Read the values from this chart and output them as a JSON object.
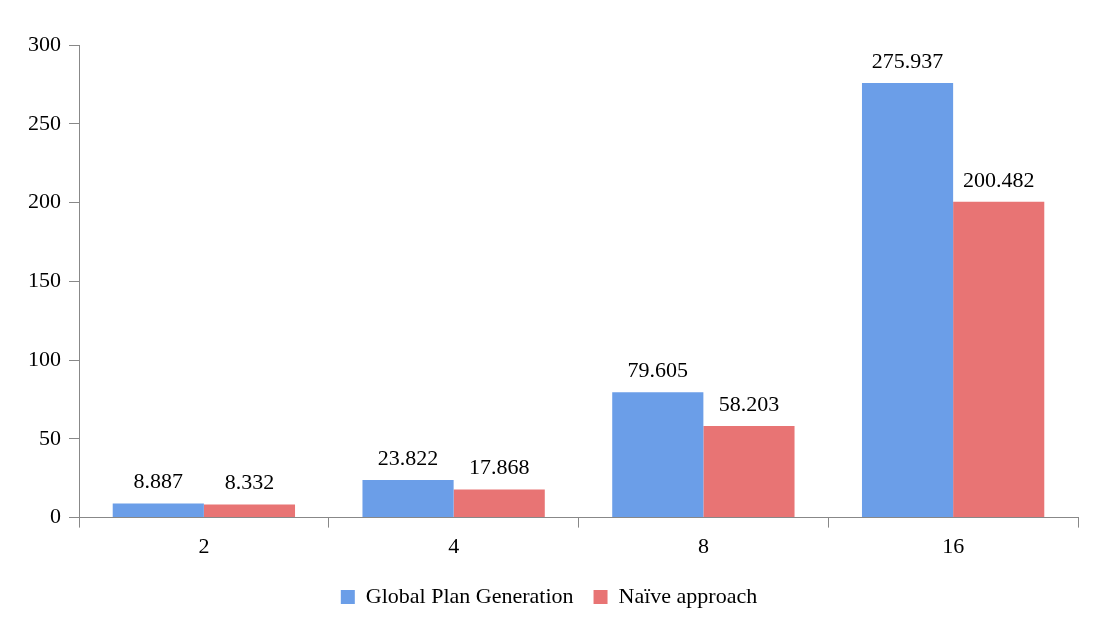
{
  "chart_data": {
    "type": "bar",
    "categories": [
      "2",
      "4",
      "8",
      "16"
    ],
    "series": [
      {
        "name": "Global Plan Generation",
        "color": "#6b9ee8",
        "values": [
          8.887,
          23.822,
          79.605,
          275.937
        ]
      },
      {
        "name": "Naïve approach",
        "color": "#e87474",
        "values": [
          8.332,
          17.868,
          58.203,
          200.482
        ]
      }
    ],
    "ylim": [
      0,
      300
    ],
    "yticks": [
      0,
      50,
      100,
      150,
      200,
      250,
      300
    ],
    "grid": false,
    "legend": "bottom",
    "data_labels": true
  }
}
